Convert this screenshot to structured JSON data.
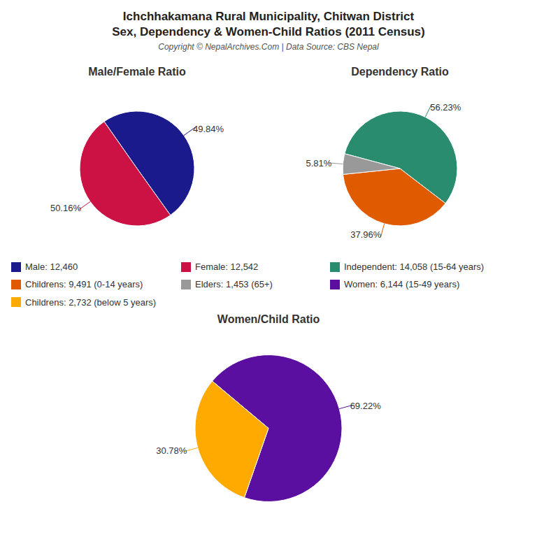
{
  "title": "Ichchhakamana Rural Municipality, Chitwan District",
  "subtitle": "Sex, Dependency & Women-Child Ratios (2011 Census)",
  "annotations": [
    "Copyright © NepalArchives.Com | Data Source: CBS Nepal"
  ],
  "legend": "center",
  "chart_data": [
    {
      "type": "pie",
      "title": "Male/Female Ratio",
      "categories": [
        "Male: 12,460",
        "Female: 12,542"
      ],
      "values": [
        49.84,
        50.16
      ],
      "value_labels": [
        "49.84%",
        "50.16%"
      ],
      "colors": [
        "#1a1a8c",
        "#cc1144"
      ],
      "data_labels": true
    },
    {
      "type": "pie",
      "title": "Dependency Ratio",
      "categories": [
        "Independent: 14,058 (15-64 years)",
        "Childrens: 9,491 (0-14 years)",
        "Elders: 1,453 (65+)"
      ],
      "values": [
        56.23,
        37.96,
        5.81
      ],
      "value_labels": [
        "56.23%",
        "37.96%",
        "5.81%"
      ],
      "colors": [
        "#2a8c6e",
        "#e05a00",
        "#999999"
      ],
      "data_labels": true
    },
    {
      "type": "pie",
      "title": "Women/Child Ratio",
      "categories": [
        "Women: 6,144 (15-49 years)",
        "Childrens: 2,732 (below 5 years)"
      ],
      "values": [
        69.22,
        30.78
      ],
      "value_labels": [
        "69.22%",
        "30.78%"
      ],
      "colors": [
        "#5b0fa0",
        "#ffaa00"
      ],
      "data_labels": true
    }
  ]
}
